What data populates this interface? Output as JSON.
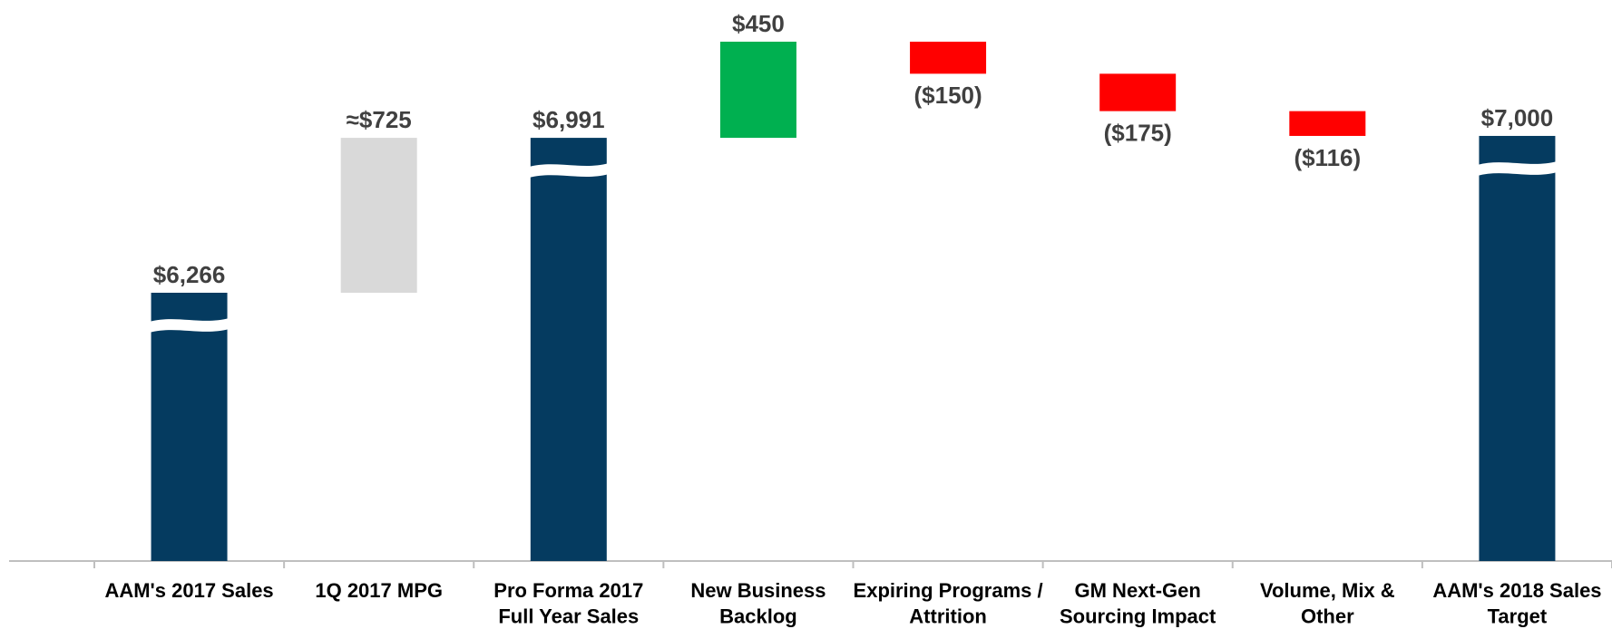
{
  "chart_data": {
    "type": "waterfall",
    "categories": [
      "AAM's 2017 Sales",
      "1Q 2017 MPG",
      "Pro Forma 2017\nFull Year Sales",
      "New Business\nBacklog",
      "Expiring Programs /\nAttrition",
      "GM Next-Gen\nSourcing Impact",
      "Volume, Mix &\nOther",
      "AAM's 2018 Sales\nTarget"
    ],
    "values": [
      6266,
      725,
      6991,
      450,
      -150,
      -175,
      -116,
      7000
    ],
    "value_labels": [
      "$6,266",
      "≈$725",
      "$6,991",
      "$450",
      "($150)",
      "($175)",
      "($116)",
      "$7,000"
    ],
    "colors": [
      "#053b60",
      "#d9d9d9",
      "#053b60",
      "#00b050",
      "#ff0000",
      "#ff0000",
      "#ff0000",
      "#053b60"
    ],
    "axis_break": true
  }
}
